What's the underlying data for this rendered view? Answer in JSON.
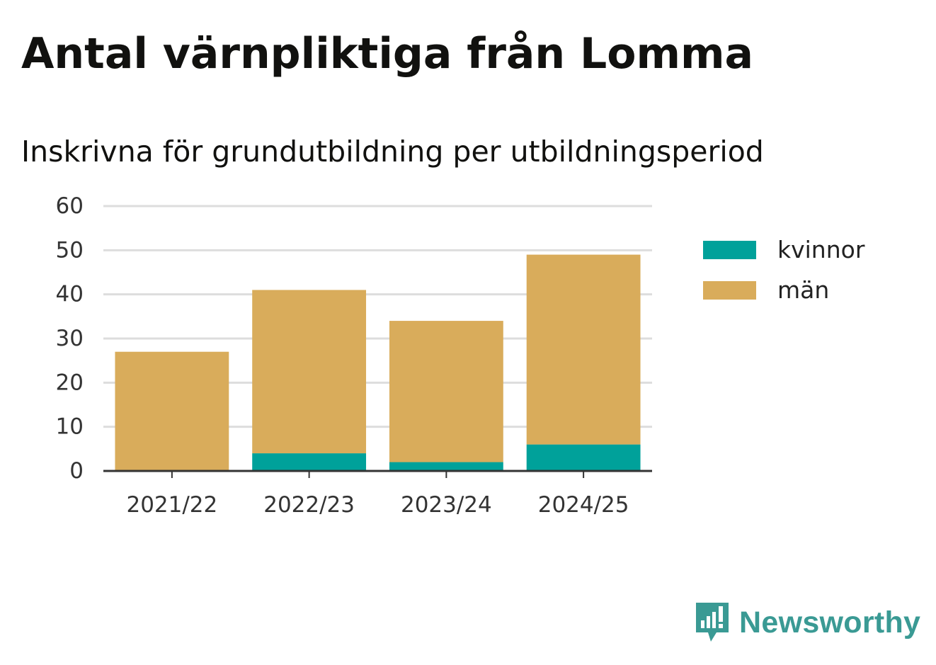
{
  "title": "Antal värnpliktiga från Lomma",
  "subtitle": "Inskrivna för grundutbildning per utbildningsperiod",
  "colors": {
    "kvinnor": "#00a19a",
    "man": "#d9ac5b",
    "grid": "#dddddd",
    "axis": "#333333",
    "brand": "#3a9a94"
  },
  "legend": [
    {
      "label": "kvinnor",
      "color": "#00a19a"
    },
    {
      "label": "män",
      "color": "#d9ac5b"
    }
  ],
  "logo": {
    "text": "Newsworthy",
    "icon": "newsworthy-logo-icon"
  },
  "chart_data": {
    "type": "bar",
    "stacked": true,
    "categories": [
      "2021/22",
      "2022/23",
      "2023/24",
      "2024/25"
    ],
    "series": [
      {
        "name": "kvinnor",
        "values": [
          0,
          4,
          2,
          6
        ]
      },
      {
        "name": "män",
        "values": [
          27,
          37,
          32,
          43
        ]
      }
    ],
    "ylim": [
      0,
      60
    ],
    "yticks": [
      0,
      10,
      20,
      30,
      40,
      50,
      60
    ],
    "grid": true,
    "legend_position": "right"
  }
}
